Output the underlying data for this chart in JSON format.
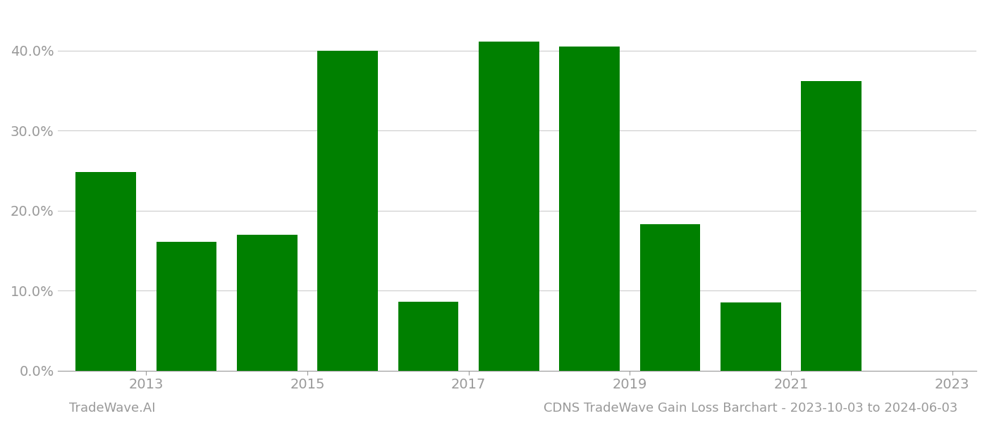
{
  "bar_positions": [
    0,
    1,
    2,
    3,
    4,
    5,
    6,
    7,
    8,
    9
  ],
  "values": [
    0.248,
    0.161,
    0.17,
    0.4,
    0.086,
    0.411,
    0.405,
    0.183,
    0.085,
    0.362
  ],
  "bar_color": "#008000",
  "background_color": "#ffffff",
  "grid_color": "#cccccc",
  "tick_label_color": "#999999",
  "xtick_positions": [
    0.5,
    2.5,
    4.5,
    6.5,
    8.5,
    10.5
  ],
  "xtick_labels": [
    "2013",
    "2015",
    "2017",
    "2019",
    "2021",
    "2023"
  ],
  "ylim": [
    0,
    0.45
  ],
  "yticks": [
    0.0,
    0.1,
    0.2,
    0.3,
    0.4
  ],
  "xlim": [
    -0.6,
    10.8
  ],
  "footer_left": "TradeWave.AI",
  "footer_right": "CDNS TradeWave Gain Loss Barchart - 2023-10-03 to 2024-06-03",
  "footer_color": "#999999",
  "footer_fontsize": 13,
  "bar_width": 0.75
}
